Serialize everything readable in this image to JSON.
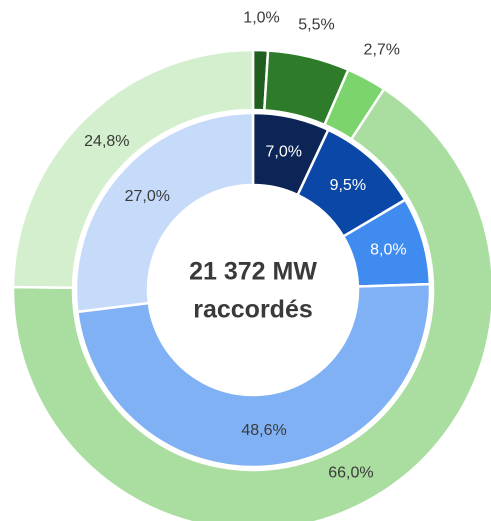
{
  "chart_data": {
    "type": "donut",
    "center_label": [
      "21 372 MW",
      "raccordés"
    ],
    "rings": [
      {
        "values": [
          1.0,
          5.5,
          2.7,
          66.0,
          24.8
        ],
        "value_labels": [
          "1,0%",
          "5,5%",
          "2,7%",
          "66,0%",
          "24,8%"
        ],
        "colors": [
          "#1f5e1f",
          "#2e7b2a",
          "#7cd56c",
          "#a9dea0",
          "#d3efcd"
        ]
      },
      {
        "values": [
          7.0,
          9.5,
          8.0,
          48.6,
          27.0
        ],
        "value_labels": [
          "7,0%",
          "9,5%",
          "8,0%",
          "48,6%",
          "27,0%"
        ],
        "colors": [
          "#0c2456",
          "#0b47a6",
          "#3f8bf0",
          "#80b1f5",
          "#c6dbfa"
        ]
      }
    ]
  }
}
